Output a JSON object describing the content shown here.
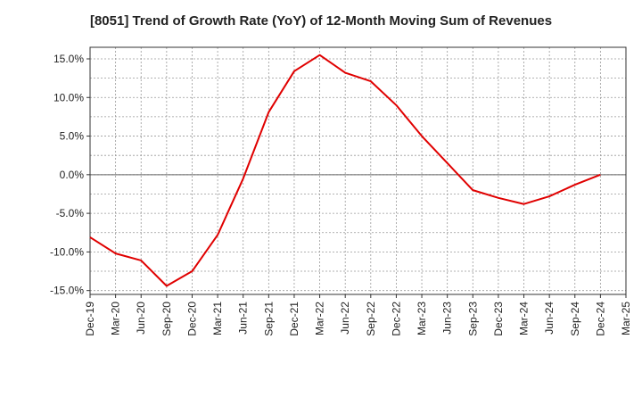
{
  "chart_data": {
    "type": "line",
    "title": "[8051]  Trend of Growth Rate (YoY) of 12-Month Moving Sum of Revenues",
    "xlabel": "",
    "ylabel": "",
    "x_labels": [
      "Dec-19",
      "Mar-20",
      "Jun-20",
      "Sep-20",
      "Dec-20",
      "Mar-21",
      "Jun-21",
      "Sep-21",
      "Dec-21",
      "Mar-22",
      "Jun-22",
      "Sep-22",
      "Dec-22",
      "Mar-23",
      "Jun-23",
      "Sep-23",
      "Dec-23",
      "Mar-24",
      "Jun-24",
      "Sep-24",
      "Dec-24",
      "Mar-25"
    ],
    "ylim": [
      -15.5,
      16.5
    ],
    "y_ticks": [
      15,
      10,
      5,
      0,
      -5,
      -10,
      -15
    ],
    "y_tick_labels": [
      "15.0%",
      "10.0%",
      "5.0%",
      "0.0%",
      "-5.0%",
      "-10.0%",
      "-15.0%"
    ],
    "grid": true,
    "series": [
      {
        "color": "#e00000",
        "x": [
          "Dec-19",
          "Mar-20",
          "Jun-20",
          "Sep-20",
          "Dec-20",
          "Mar-21",
          "Jun-21",
          "Sep-21",
          "Dec-21",
          "Mar-22",
          "Jun-22",
          "Sep-22",
          "Dec-22",
          "Mar-23",
          "Jun-23",
          "Sep-23",
          "Dec-23",
          "Mar-24",
          "Jun-24",
          "Sep-24",
          "Dec-24"
        ],
        "values": [
          -8.1,
          -10.2,
          -11.1,
          -14.4,
          -12.5,
          -7.8,
          -0.5,
          8.1,
          13.4,
          15.5,
          13.2,
          12.1,
          9.0,
          5.0,
          1.5,
          -2.0,
          -3.0,
          -3.8,
          -2.8,
          -1.3,
          0.0
        ]
      }
    ]
  }
}
